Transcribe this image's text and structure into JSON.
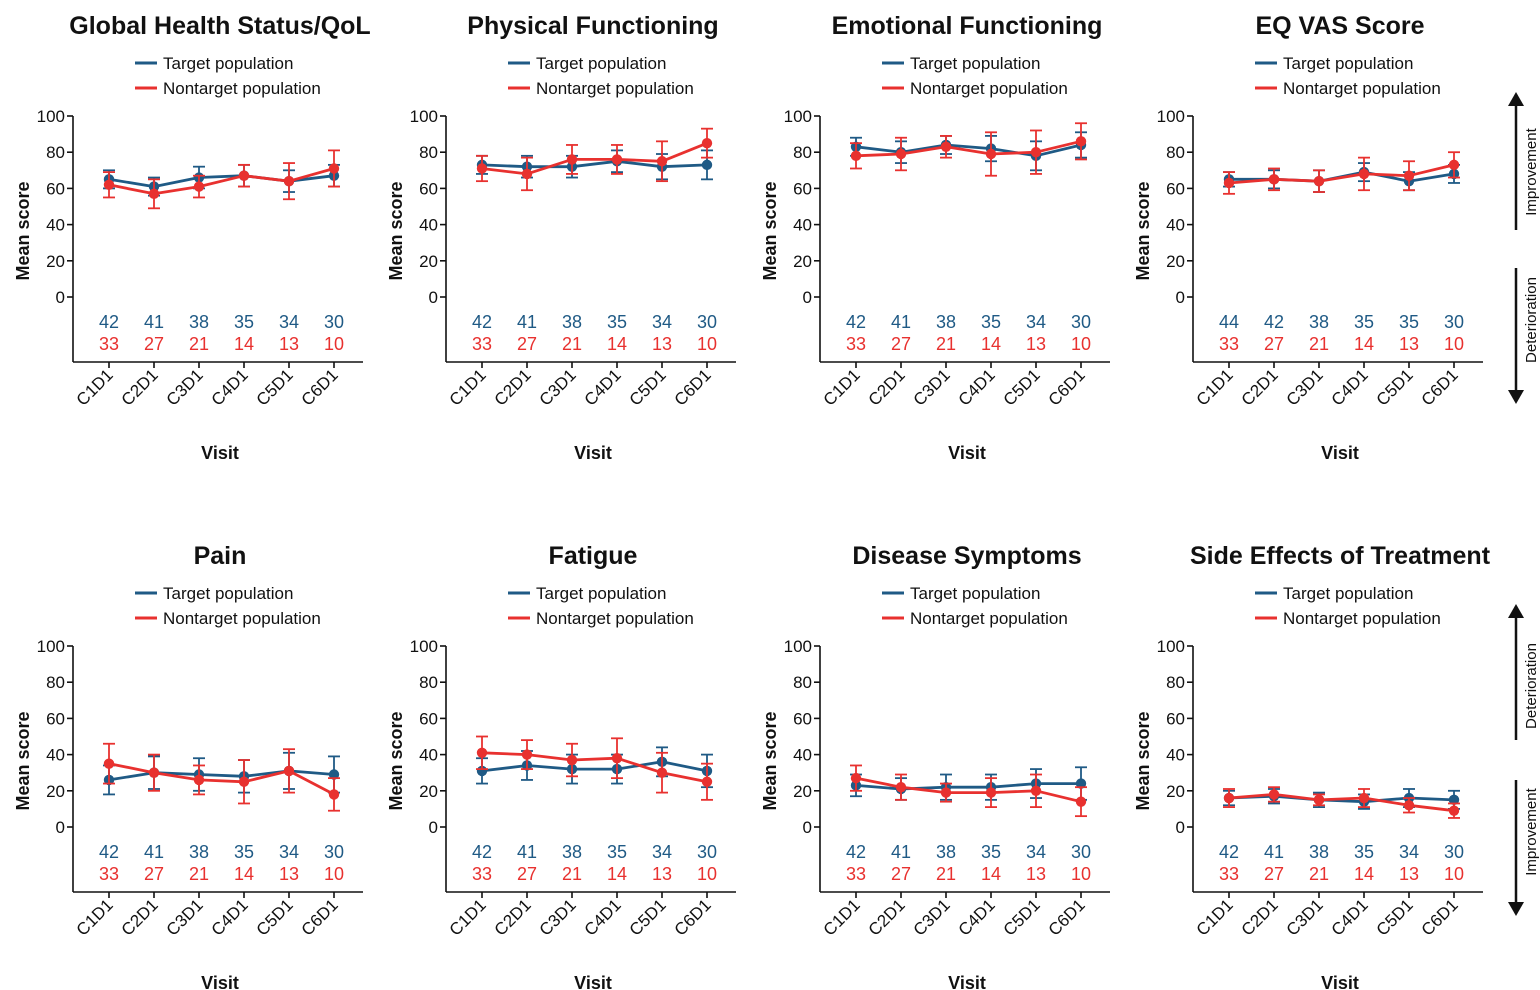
{
  "colors": {
    "target": "#1f5a85",
    "nontarget": "#e8312f",
    "axis": "#111111"
  },
  "side_labels": {
    "improvement": "Improvement",
    "deterioration": "Deterioration"
  },
  "chart_data": [
    {
      "type": "line",
      "title": "Global Health Status/QoL",
      "xlabel": "Visit",
      "ylabel": "Mean score",
      "ylim": [
        0,
        100
      ],
      "yticks": [
        0,
        20,
        40,
        60,
        80,
        100
      ],
      "categories": [
        "C1D1",
        "C2D1",
        "C3D1",
        "C4D1",
        "C5D1",
        "C6D1"
      ],
      "legend_position": "top-center",
      "series": [
        {
          "name": "Target population",
          "values": [
            65,
            61,
            66,
            67,
            64,
            67
          ],
          "err": [
            5,
            5,
            6,
            6,
            6,
            6
          ],
          "n": [
            42,
            41,
            38,
            35,
            34,
            30
          ]
        },
        {
          "name": "Nontarget population",
          "values": [
            62,
            57,
            61,
            67,
            64,
            71
          ],
          "err": [
            7,
            8,
            6,
            6,
            10,
            10
          ],
          "n": [
            33,
            27,
            21,
            14,
            13,
            10
          ]
        }
      ]
    },
    {
      "type": "line",
      "title": "Physical Functioning",
      "xlabel": "Visit",
      "ylabel": "Mean score",
      "ylim": [
        0,
        100
      ],
      "yticks": [
        0,
        20,
        40,
        60,
        80,
        100
      ],
      "categories": [
        "C1D1",
        "C2D1",
        "C3D1",
        "C4D1",
        "C5D1",
        "C6D1"
      ],
      "legend_position": "top-center",
      "series": [
        {
          "name": "Target population",
          "values": [
            73,
            72,
            72,
            75,
            72,
            73
          ],
          "err": [
            5,
            6,
            6,
            6,
            7,
            8
          ],
          "n": [
            42,
            41,
            38,
            35,
            34,
            30
          ]
        },
        {
          "name": "Nontarget population",
          "values": [
            71,
            68,
            76,
            76,
            75,
            85
          ],
          "err": [
            7,
            9,
            8,
            8,
            11,
            8
          ],
          "n": [
            33,
            27,
            21,
            14,
            13,
            10
          ]
        }
      ]
    },
    {
      "type": "line",
      "title": "Emotional Functioning",
      "xlabel": "Visit",
      "ylabel": "Mean score",
      "ylim": [
        0,
        100
      ],
      "yticks": [
        0,
        20,
        40,
        60,
        80,
        100
      ],
      "categories": [
        "C1D1",
        "C2D1",
        "C3D1",
        "C4D1",
        "C5D1",
        "C6D1"
      ],
      "legend_position": "top-center",
      "series": [
        {
          "name": "Target population",
          "values": [
            83,
            80,
            84,
            82,
            78,
            84
          ],
          "err": [
            5,
            6,
            5,
            7,
            8,
            7
          ],
          "n": [
            42,
            41,
            38,
            35,
            34,
            30
          ]
        },
        {
          "name": "Nontarget population",
          "values": [
            78,
            79,
            83,
            79,
            80,
            86
          ],
          "err": [
            7,
            9,
            6,
            12,
            12,
            10
          ],
          "n": [
            33,
            27,
            21,
            14,
            13,
            10
          ]
        }
      ]
    },
    {
      "type": "line",
      "title": "EQ VAS Score",
      "xlabel": "Visit",
      "ylabel": "Mean score",
      "ylim": [
        0,
        100
      ],
      "yticks": [
        0,
        20,
        40,
        60,
        80,
        100
      ],
      "categories": [
        "C1D1",
        "C2D1",
        "C3D1",
        "C4D1",
        "C5D1",
        "C6D1"
      ],
      "legend_position": "top-center",
      "series": [
        {
          "name": "Target population",
          "values": [
            65,
            65,
            64,
            69,
            64,
            68
          ],
          "err": [
            4,
            5,
            6,
            5,
            5,
            5
          ],
          "n": [
            44,
            42,
            38,
            35,
            35,
            30
          ]
        },
        {
          "name": "Nontarget population",
          "values": [
            63,
            65,
            64,
            68,
            67,
            73
          ],
          "err": [
            6,
            6,
            6,
            9,
            8,
            7
          ],
          "n": [
            33,
            27,
            21,
            14,
            13,
            10
          ]
        }
      ]
    },
    {
      "type": "line",
      "title": "Pain",
      "xlabel": "Visit",
      "ylabel": "Mean score",
      "ylim": [
        0,
        100
      ],
      "yticks": [
        0,
        20,
        40,
        60,
        80,
        100
      ],
      "categories": [
        "C1D1",
        "C2D1",
        "C3D1",
        "C4D1",
        "C5D1",
        "C6D1"
      ],
      "legend_position": "top-center",
      "series": [
        {
          "name": "Target population",
          "values": [
            26,
            30,
            29,
            28,
            31,
            29
          ],
          "err": [
            8,
            9,
            9,
            9,
            10,
            10
          ],
          "n": [
            42,
            41,
            38,
            35,
            34,
            30
          ]
        },
        {
          "name": "Nontarget population",
          "values": [
            35,
            30,
            26,
            25,
            31,
            18
          ],
          "err": [
            11,
            10,
            8,
            12,
            12,
            9
          ],
          "n": [
            33,
            27,
            21,
            14,
            13,
            10
          ]
        }
      ]
    },
    {
      "type": "line",
      "title": "Fatigue",
      "xlabel": "Visit",
      "ylabel": "Mean score",
      "ylim": [
        0,
        100
      ],
      "yticks": [
        0,
        20,
        40,
        60,
        80,
        100
      ],
      "categories": [
        "C1D1",
        "C2D1",
        "C3D1",
        "C4D1",
        "C5D1",
        "C6D1"
      ],
      "legend_position": "top-center",
      "series": [
        {
          "name": "Target population",
          "values": [
            31,
            34,
            32,
            32,
            36,
            31
          ],
          "err": [
            7,
            8,
            8,
            8,
            8,
            9
          ],
          "n": [
            42,
            41,
            38,
            35,
            34,
            30
          ]
        },
        {
          "name": "Nontarget population",
          "values": [
            41,
            40,
            37,
            38,
            30,
            25
          ],
          "err": [
            9,
            8,
            9,
            11,
            11,
            10
          ],
          "n": [
            33,
            27,
            21,
            14,
            13,
            10
          ]
        }
      ]
    },
    {
      "type": "line",
      "title": "Disease Symptoms",
      "xlabel": "Visit",
      "ylabel": "Mean score",
      "ylim": [
        0,
        100
      ],
      "yticks": [
        0,
        20,
        40,
        60,
        80,
        100
      ],
      "categories": [
        "C1D1",
        "C2D1",
        "C3D1",
        "C4D1",
        "C5D1",
        "C6D1"
      ],
      "legend_position": "top-center",
      "series": [
        {
          "name": "Target population",
          "values": [
            23,
            21,
            22,
            22,
            24,
            24
          ],
          "err": [
            6,
            6,
            7,
            7,
            8,
            9
          ],
          "n": [
            42,
            41,
            38,
            35,
            34,
            30
          ]
        },
        {
          "name": "Nontarget population",
          "values": [
            27,
            22,
            19,
            19,
            20,
            14
          ],
          "err": [
            7,
            7,
            5,
            8,
            9,
            8
          ],
          "n": [
            33,
            27,
            21,
            14,
            13,
            10
          ]
        }
      ]
    },
    {
      "type": "line",
      "title": "Side Effects of Treatment",
      "xlabel": "Visit",
      "ylabel": "Mean score",
      "ylim": [
        0,
        100
      ],
      "yticks": [
        0,
        20,
        40,
        60,
        80,
        100
      ],
      "categories": [
        "C1D1",
        "C2D1",
        "C3D1",
        "C4D1",
        "C5D1",
        "C6D1"
      ],
      "legend_position": "top-center",
      "series": [
        {
          "name": "Target population",
          "values": [
            16,
            17,
            15,
            14,
            16,
            15
          ],
          "err": [
            4,
            4,
            4,
            4,
            5,
            5
          ],
          "n": [
            42,
            41,
            38,
            35,
            34,
            30
          ]
        },
        {
          "name": "Nontarget population",
          "values": [
            16,
            18,
            15,
            16,
            12,
            9
          ],
          "err": [
            5,
            4,
            3,
            5,
            4,
            4
          ],
          "n": [
            33,
            27,
            21,
            14,
            13,
            10
          ]
        }
      ]
    }
  ]
}
